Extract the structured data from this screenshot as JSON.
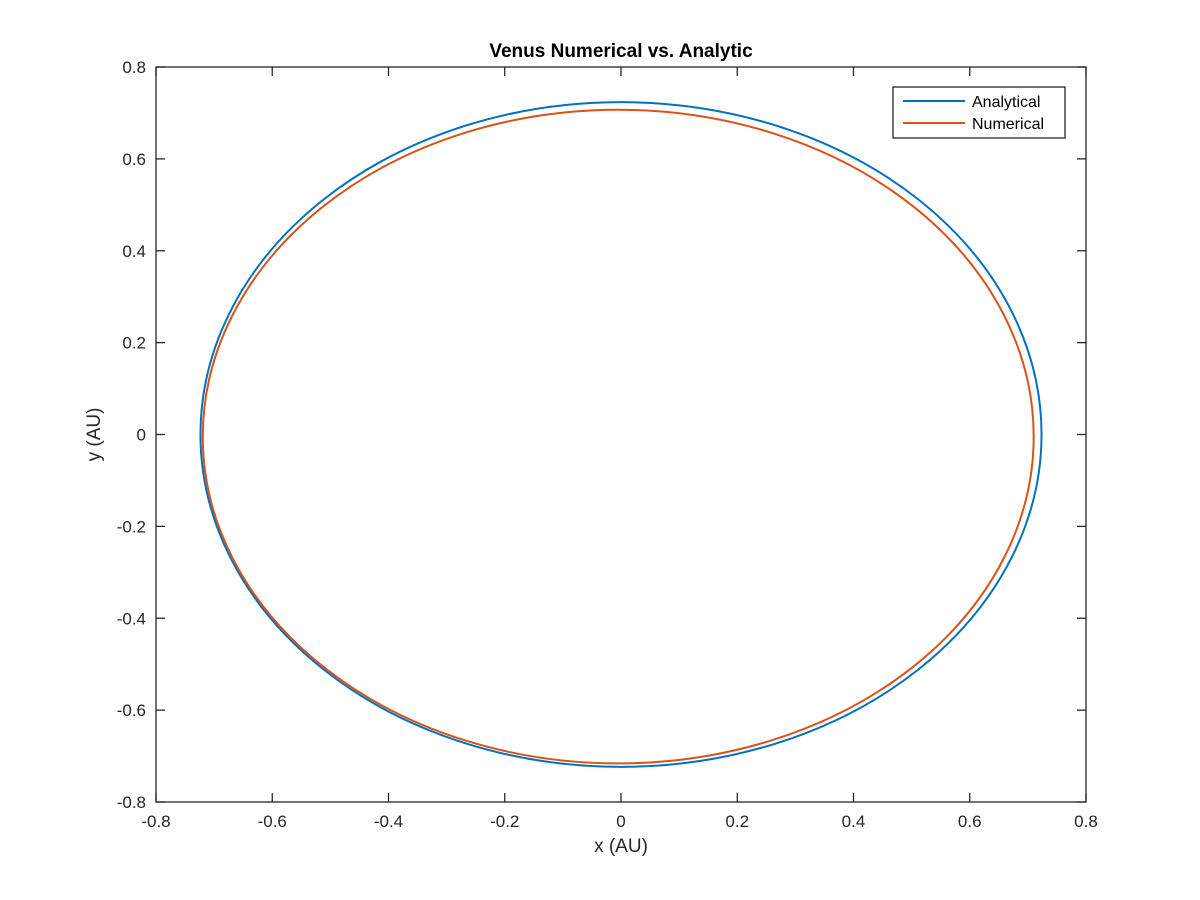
{
  "chart_data": {
    "type": "line",
    "title": "Venus Numerical vs. Analytic",
    "xlabel": "x (AU)",
    "ylabel": "y (AU)",
    "xlim": [
      -0.8,
      0.8
    ],
    "ylim": [
      -0.8,
      0.8
    ],
    "xticks": [
      -0.8,
      -0.6,
      -0.4,
      -0.2,
      0,
      0.2,
      0.4,
      0.6,
      0.8
    ],
    "yticks": [
      -0.8,
      -0.6,
      -0.4,
      -0.2,
      0,
      0.2,
      0.4,
      0.6,
      0.8
    ],
    "xtick_labels": [
      "-0.8",
      "-0.6",
      "-0.4",
      "-0.2",
      "0",
      "0.2",
      "0.4",
      "0.6",
      "0.8"
    ],
    "ytick_labels": [
      "-0.8",
      "-0.6",
      "-0.4",
      "-0.2",
      "0",
      "0.2",
      "0.4",
      "0.6",
      "0.8"
    ],
    "grid": false,
    "legend": "top-right",
    "series": [
      {
        "name": "Analytical",
        "color": "#0072BD",
        "shape": "ellipse",
        "center": [
          0,
          0
        ],
        "x_extent": [
          -0.7235,
          0.7235
        ],
        "y_extent": [
          -0.7235,
          0.7235
        ]
      },
      {
        "name": "Numerical",
        "color": "#D95319",
        "shape": "ellipse",
        "center": [
          -0.0048,
          -0.0045
        ],
        "x_extent": [
          -0.7195,
          0.71
        ],
        "y_extent": [
          -0.716,
          0.707
        ]
      }
    ]
  }
}
